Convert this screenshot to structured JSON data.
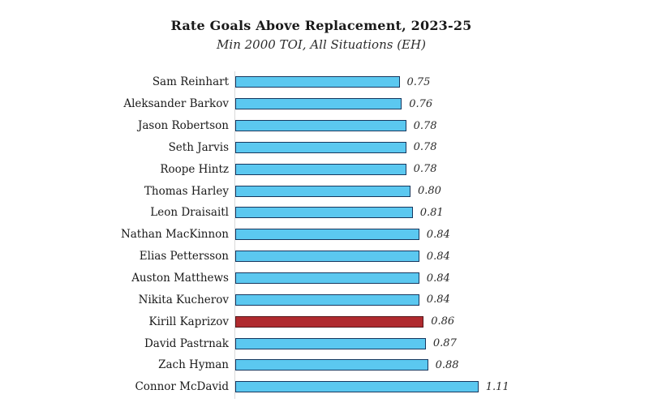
{
  "header": {
    "title": "Rate Goals Above Replacement, 2023-25",
    "subtitle": "Min 2000 TOI, All Situations (EH)"
  },
  "chart_data": {
    "type": "bar",
    "orientation": "horizontal",
    "title": "Rate Goals Above Replacement, 2023-25",
    "subtitle": "Min 2000 TOI, All Situations (EH)",
    "categories": [
      "Sam Reinhart",
      "Aleksander Barkov",
      "Jason Robertson",
      "Seth Jarvis",
      "Roope Hintz",
      "Thomas Harley",
      "Leon Draisaitl",
      "Nathan MacKinnon",
      "Elias Pettersson",
      "Auston Matthews",
      "Nikita Kucherov",
      "Kirill Kaprizov",
      "David Pastrnak",
      "Zach Hyman",
      "Connor McDavid"
    ],
    "values": [
      0.75,
      0.76,
      0.78,
      0.78,
      0.78,
      0.8,
      0.81,
      0.84,
      0.84,
      0.84,
      0.84,
      0.86,
      0.87,
      0.88,
      1.11
    ],
    "value_labels": [
      "0.75",
      "0.76",
      "0.78",
      "0.78",
      "0.78",
      "0.80",
      "0.81",
      "0.84",
      "0.84",
      "0.84",
      "0.84",
      "0.86",
      "0.87",
      "0.88",
      "1.11"
    ],
    "highlight_index": 11,
    "highlight_category": "Kirill Kaprizov",
    "xlabel": "",
    "ylabel": "",
    "xlim": [
      0,
      1.2
    ],
    "grid": false,
    "legend": "none",
    "colors": {
      "bar_fill": "#5BC8F0",
      "bar_border": "#17375E",
      "highlight_fill": "#B02A2E",
      "highlight_border": "#54161A",
      "axis_line": "#D9D9D9",
      "text": "#1A1A1A"
    }
  }
}
